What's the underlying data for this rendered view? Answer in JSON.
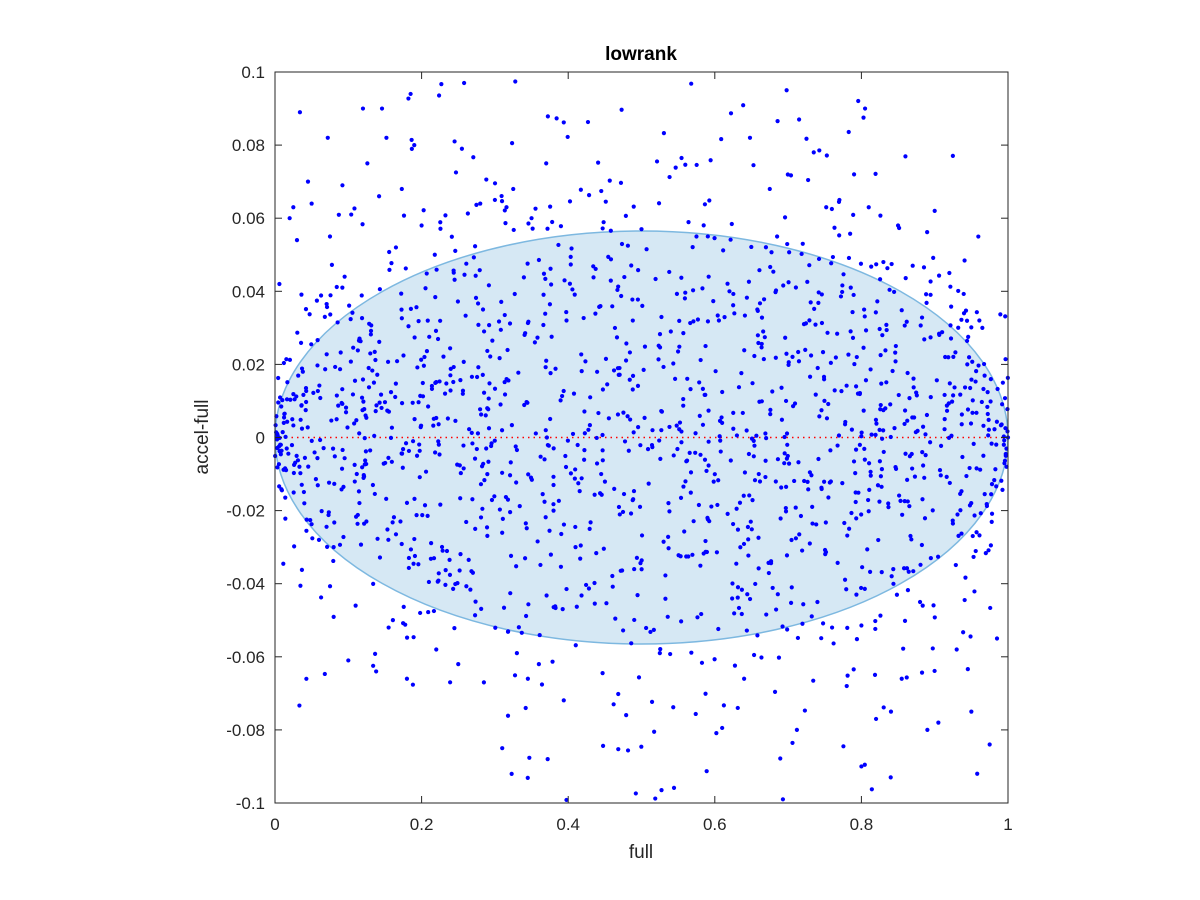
{
  "chart_data": {
    "type": "scatter",
    "title": "lowrank",
    "xlabel": "full",
    "ylabel": "accel-full",
    "xlim": [
      0,
      1
    ],
    "ylim": [
      -0.1,
      0.1
    ],
    "x_ticks": [
      "0",
      "0.2",
      "0.4",
      "0.6",
      "0.8",
      "1"
    ],
    "y_ticks": [
      "0.1",
      "0.08",
      "0.06",
      "0.04",
      "0.02",
      "0",
      "-0.02",
      "-0.04",
      "-0.06",
      "-0.08",
      "-0.1"
    ],
    "grid": false,
    "reference_line": {
      "y": 0,
      "style": "dotted",
      "color": "#ff0000"
    },
    "envelope": {
      "shape": "ellipse",
      "center": [
        0.5,
        0
      ],
      "x_semi_axis": 0.5,
      "y_semi_axis": 0.0565,
      "fill": "#d6e8f4",
      "stroke": "#7db8e0"
    },
    "series": [
      {
        "marker_color": "#0000ff",
        "approx_point_count": 1600,
        "points": [
          [
            0.003,
            0.001
          ],
          [
            0.008,
            -0.002
          ],
          [
            0.012,
            0.004
          ],
          [
            0.016,
            -0.003
          ],
          [
            0.006,
            0.042
          ],
          [
            0.02,
            0.06
          ],
          [
            0.025,
            0.063
          ],
          [
            0.03,
            0.054
          ],
          [
            0.034,
            0.089
          ],
          [
            0.038,
            0.018
          ],
          [
            0.04,
            -0.018
          ],
          [
            0.045,
            0.07
          ],
          [
            0.05,
            0.064
          ],
          [
            0.06,
            -0.028
          ],
          [
            0.068,
            0.033
          ],
          [
            0.072,
            0.082
          ],
          [
            0.075,
            0.055
          ],
          [
            0.08,
            -0.03
          ],
          [
            0.092,
            0.069
          ],
          [
            0.095,
            0.044
          ],
          [
            0.1,
            -0.061
          ],
          [
            0.104,
            0.061
          ],
          [
            0.11,
            -0.046
          ],
          [
            0.12,
            0.09
          ],
          [
            0.126,
            0.075
          ],
          [
            0.13,
            0.023
          ],
          [
            0.138,
            -0.064
          ],
          [
            0.142,
            0.066
          ],
          [
            0.146,
            0.09
          ],
          [
            0.152,
            0.082
          ],
          [
            0.155,
            -0.052
          ],
          [
            0.165,
            0.052
          ],
          [
            0.173,
            0.068
          ],
          [
            0.18,
            -0.066
          ],
          [
            0.185,
            0.094
          ],
          [
            0.19,
            0.08
          ],
          [
            0.198,
            -0.048
          ],
          [
            0.2,
            0.058
          ],
          [
            0.218,
            0.05
          ],
          [
            0.22,
            -0.058
          ],
          [
            0.232,
            0.012
          ],
          [
            0.245,
            0.081
          ],
          [
            0.25,
            -0.062
          ],
          [
            0.255,
            0.079
          ],
          [
            0.258,
            0.097
          ],
          [
            0.27,
            -0.037
          ],
          [
            0.28,
            0.064
          ],
          [
            0.285,
            -0.067
          ],
          [
            0.3,
            0.065
          ],
          [
            0.31,
            -0.085
          ],
          [
            0.325,
            0.068
          ],
          [
            0.33,
            -0.059
          ],
          [
            0.342,
            -0.074
          ],
          [
            0.345,
            -0.066
          ],
          [
            0.35,
            0.06
          ],
          [
            0.36,
            -0.062
          ],
          [
            0.37,
            0.075
          ],
          [
            0.372,
            -0.088
          ],
          [
            0.38,
            -0.02
          ],
          [
            0.395,
            0.043
          ],
          [
            0.41,
            -0.03
          ],
          [
            0.43,
            0.011
          ],
          [
            0.445,
            -0.01
          ],
          [
            0.462,
            -0.073
          ],
          [
            0.47,
            0.019
          ],
          [
            0.49,
            -0.036
          ],
          [
            0.5,
            0.057
          ],
          [
            0.515,
            0.002
          ],
          [
            0.525,
            -0.059
          ],
          [
            0.54,
            0.029
          ],
          [
            0.56,
            -0.012
          ],
          [
            0.575,
            0.055
          ],
          [
            0.59,
            -0.022
          ],
          [
            0.61,
            0.004
          ],
          [
            0.62,
            0.04
          ],
          [
            0.64,
            -0.066
          ],
          [
            0.648,
            0.082
          ],
          [
            0.66,
            -0.01
          ],
          [
            0.675,
            0.068
          ],
          [
            0.685,
            0.055
          ],
          [
            0.698,
            0.095
          ],
          [
            0.705,
            -0.041
          ],
          [
            0.712,
            -0.08
          ],
          [
            0.715,
            0.087
          ],
          [
            0.72,
            0.053
          ],
          [
            0.735,
            0.078
          ],
          [
            0.74,
            -0.045
          ],
          [
            0.752,
            0.063
          ],
          [
            0.76,
            -0.052
          ],
          [
            0.77,
            0.065
          ],
          [
            0.78,
            -0.068
          ],
          [
            0.79,
            0.072
          ],
          [
            0.8,
            -0.09
          ],
          [
            0.805,
            0.09
          ],
          [
            0.81,
            0.063
          ],
          [
            0.82,
            -0.077
          ],
          [
            0.83,
            0.048
          ],
          [
            0.84,
            -0.093
          ],
          [
            0.85,
            0.058
          ],
          [
            0.855,
            -0.066
          ],
          [
            0.87,
            0.047
          ],
          [
            0.88,
            -0.045
          ],
          [
            0.89,
            -0.08
          ],
          [
            0.9,
            0.062
          ],
          [
            0.905,
            -0.078
          ],
          [
            0.92,
            0.045
          ],
          [
            0.93,
            -0.058
          ],
          [
            0.94,
            0.034
          ],
          [
            0.95,
            -0.075
          ],
          [
            0.958,
            -0.092
          ],
          [
            0.965,
            0.03
          ],
          [
            0.975,
            -0.084
          ],
          [
            0.985,
            -0.055
          ],
          [
            0.993,
            0.015
          ],
          [
            0.997,
            -0.005
          ],
          [
            1.0,
            0.0
          ],
          [
            0.998,
            -0.008
          ]
        ]
      }
    ]
  }
}
